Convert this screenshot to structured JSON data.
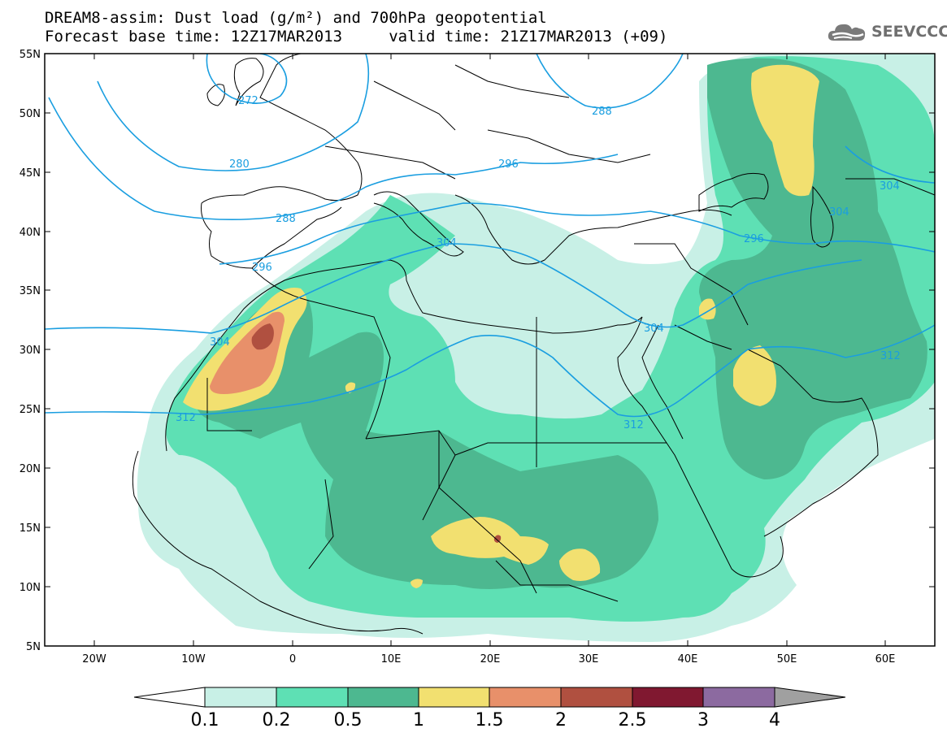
{
  "header": {
    "title_line1": "DREAM8-assim: Dust load (g/m²) and 700hPa geopotential",
    "title_line2": "Forecast base time: 12Z17MAR2013     valid time: 21Z17MAR2013 (+09)",
    "logo_text": "SEEVCCC",
    "logo_icon": "cloud-icon"
  },
  "map": {
    "region": "North Africa, Europe and Middle East",
    "lon_range": [
      -25,
      65
    ],
    "lat_range": [
      5,
      55
    ],
    "lat_labels": [
      "55N",
      "50N",
      "45N",
      "40N",
      "35N",
      "30N",
      "25N",
      "20N",
      "15N",
      "10N",
      "5N"
    ],
    "lon_labels": [
      "20W",
      "10W",
      "0",
      "10E",
      "20E",
      "30E",
      "40E",
      "50E",
      "60E"
    ],
    "geopotential_contour_labels": [
      "272",
      "288",
      "280",
      "296",
      "288",
      "296",
      "304",
      "304",
      "304",
      "296",
      "304",
      "304",
      "312",
      "312",
      "312"
    ],
    "geopotential_color": "#1a9ee0",
    "border_color": "#000000"
  },
  "legend": {
    "tick_labels": [
      "0.1",
      "0.2",
      "0.5",
      "1",
      "1.5",
      "2",
      "2.5",
      "3",
      "4"
    ],
    "colors": [
      "#c8f0e6",
      "#5ee0b4",
      "#4db890",
      "#f2e070",
      "#e8906a",
      "#b05040",
      "#801830",
      "#8c6aa0",
      "#a0a0a0"
    ],
    "under_color": "#ffffff"
  }
}
